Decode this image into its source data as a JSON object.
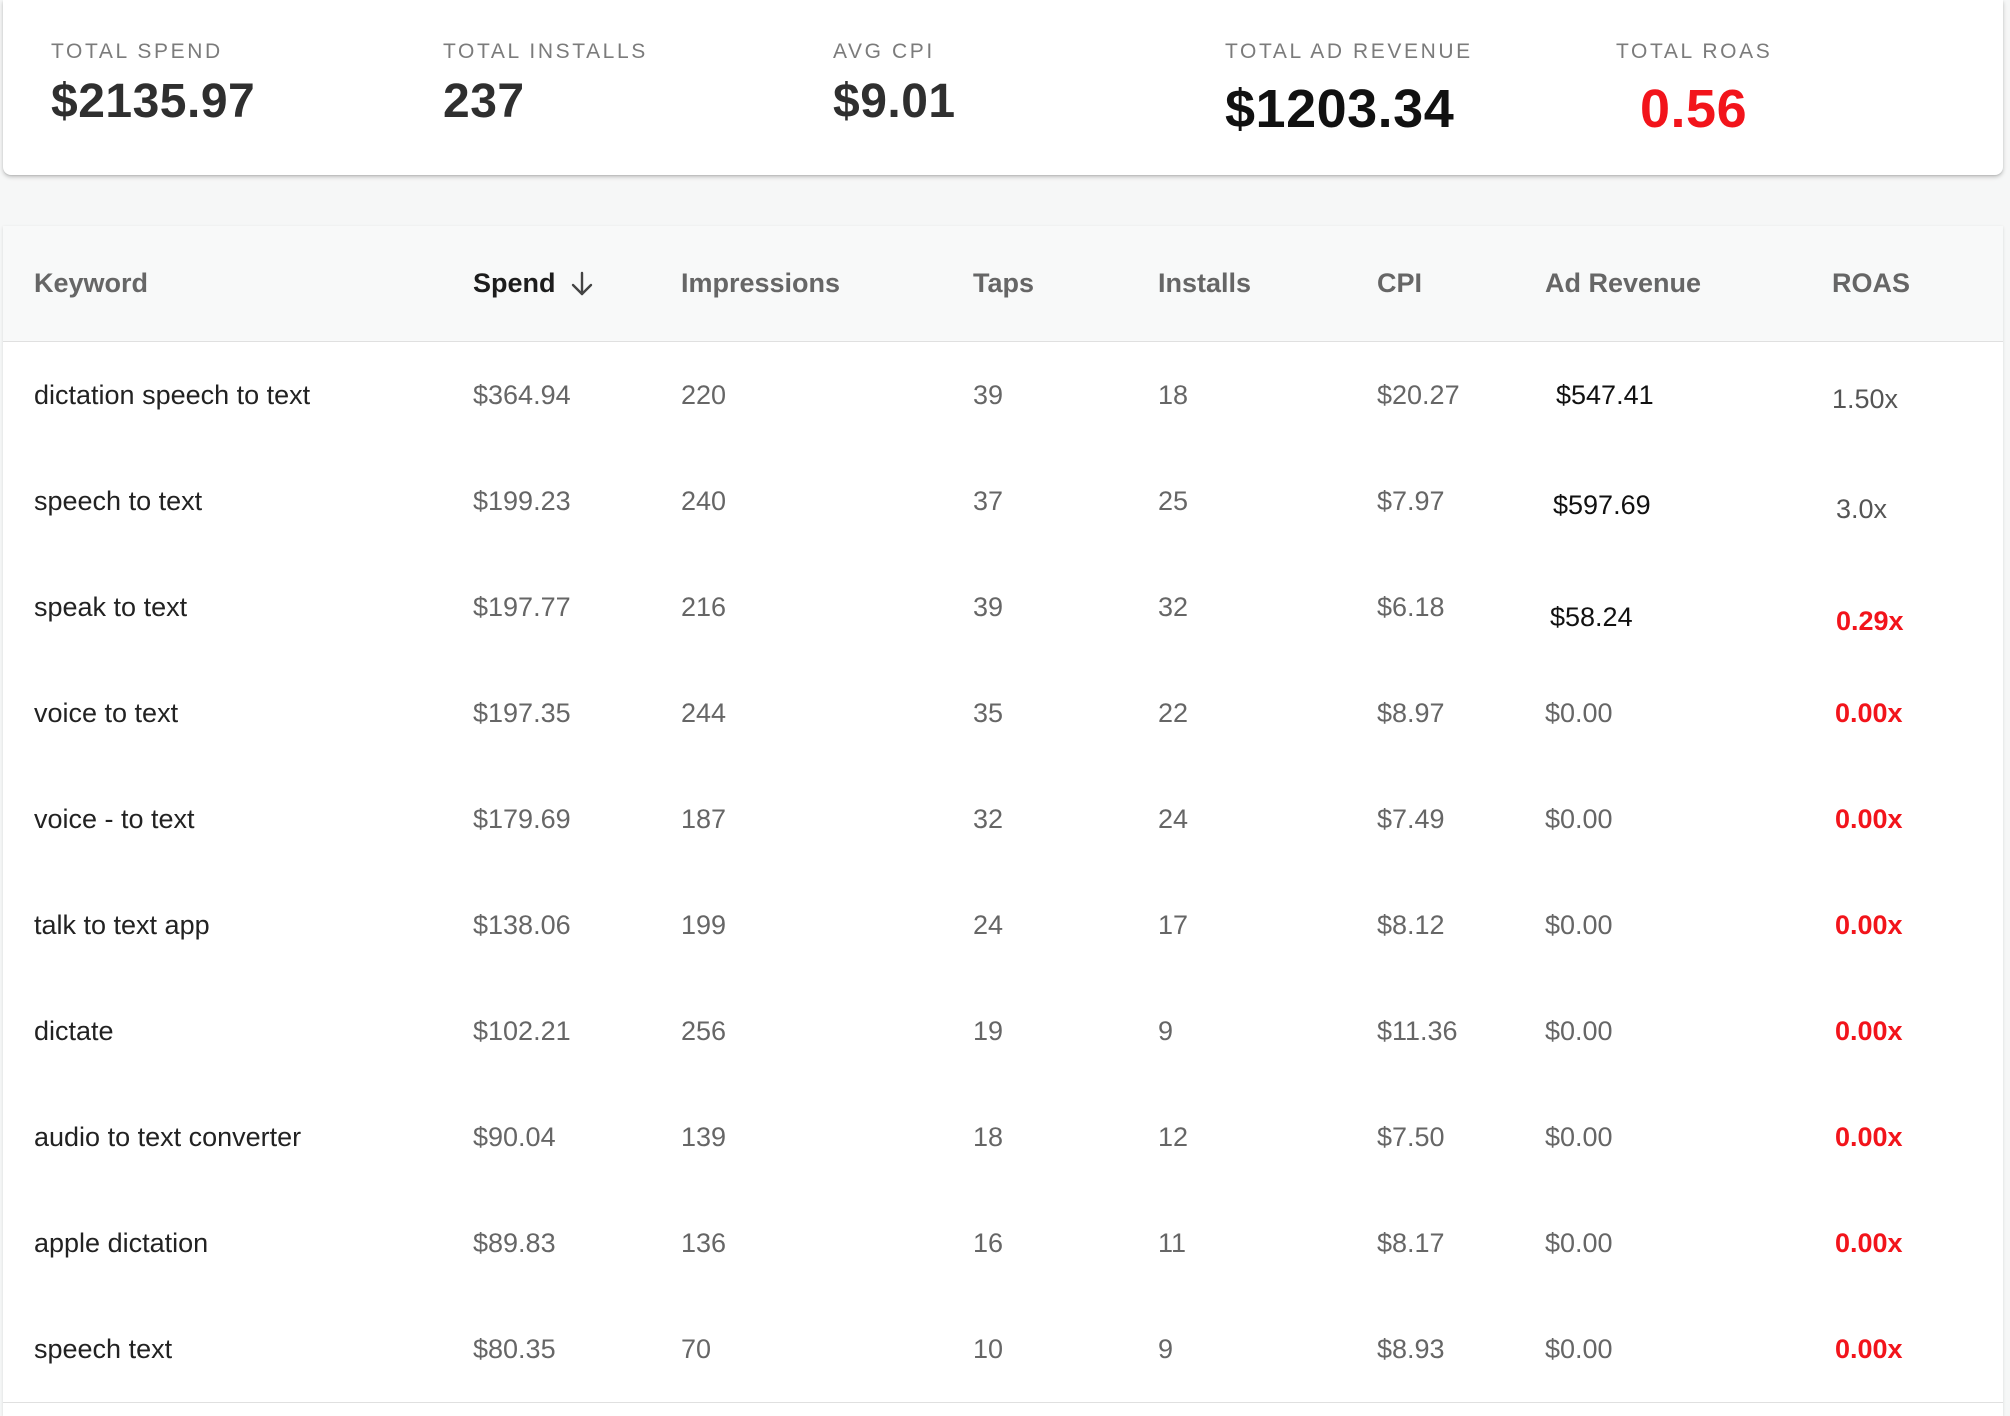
{
  "summary": {
    "total_spend": {
      "label": "TOTAL SPEND",
      "value": "$2135.97"
    },
    "total_installs": {
      "label": "TOTAL INSTALLS",
      "value": "237"
    },
    "avg_cpi": {
      "label": "AVG CPI",
      "value": "$9.01"
    },
    "total_ad_revenue": {
      "label": "TOTAL AD REVENUE",
      "value": "$1203.34"
    },
    "total_roas": {
      "label": "TOTAL ROAS",
      "value": "0.56"
    }
  },
  "table": {
    "sort_icon": "arrow-down-icon",
    "columns": {
      "keyword": "Keyword",
      "spend": "Spend",
      "impressions": "Impressions",
      "taps": "Taps",
      "installs": "Installs",
      "cpi": "CPI",
      "ad_revenue": "Ad Revenue",
      "roas": "ROAS"
    },
    "rows": [
      {
        "keyword": "dictation speech to text",
        "spend": "$364.94",
        "impressions": "220",
        "taps": "39",
        "installs": "18",
        "cpi": "$20.27",
        "ad_revenue": "$547.41",
        "roas": "1.50x"
      },
      {
        "keyword": "speech to text",
        "spend": "$199.23",
        "impressions": "240",
        "taps": "37",
        "installs": "25",
        "cpi": "$7.97",
        "ad_revenue": "$597.69",
        "roas": "3.0x"
      },
      {
        "keyword": "speak to text",
        "spend": "$197.77",
        "impressions": "216",
        "taps": "39",
        "installs": "32",
        "cpi": "$6.18",
        "ad_revenue": "$58.24",
        "roas": "0.29x"
      },
      {
        "keyword": "voice to text",
        "spend": "$197.35",
        "impressions": "244",
        "taps": "35",
        "installs": "22",
        "cpi": "$8.97",
        "ad_revenue": "$0.00",
        "roas": "0.00x"
      },
      {
        "keyword": "voice - to text",
        "spend": "$179.69",
        "impressions": "187",
        "taps": "32",
        "installs": "24",
        "cpi": "$7.49",
        "ad_revenue": "$0.00",
        "roas": "0.00x"
      },
      {
        "keyword": "talk to text app",
        "spend": "$138.06",
        "impressions": "199",
        "taps": "24",
        "installs": "17",
        "cpi": "$8.12",
        "ad_revenue": "$0.00",
        "roas": "0.00x"
      },
      {
        "keyword": "dictate",
        "spend": "$102.21",
        "impressions": "256",
        "taps": "19",
        "installs": "9",
        "cpi": "$11.36",
        "ad_revenue": "$0.00",
        "roas": "0.00x"
      },
      {
        "keyword": "audio to text converter",
        "spend": "$90.04",
        "impressions": "139",
        "taps": "18",
        "installs": "12",
        "cpi": "$7.50",
        "ad_revenue": "$0.00",
        "roas": "0.00x"
      },
      {
        "keyword": "apple dictation",
        "spend": "$89.83",
        "impressions": "136",
        "taps": "16",
        "installs": "11",
        "cpi": "$8.17",
        "ad_revenue": "$0.00",
        "roas": "0.00x"
      },
      {
        "keyword": "speech text",
        "spend": "$80.35",
        "impressions": "70",
        "taps": "10",
        "installs": "9",
        "cpi": "$8.93",
        "ad_revenue": "$0.00",
        "roas": "0.00x"
      }
    ]
  }
}
